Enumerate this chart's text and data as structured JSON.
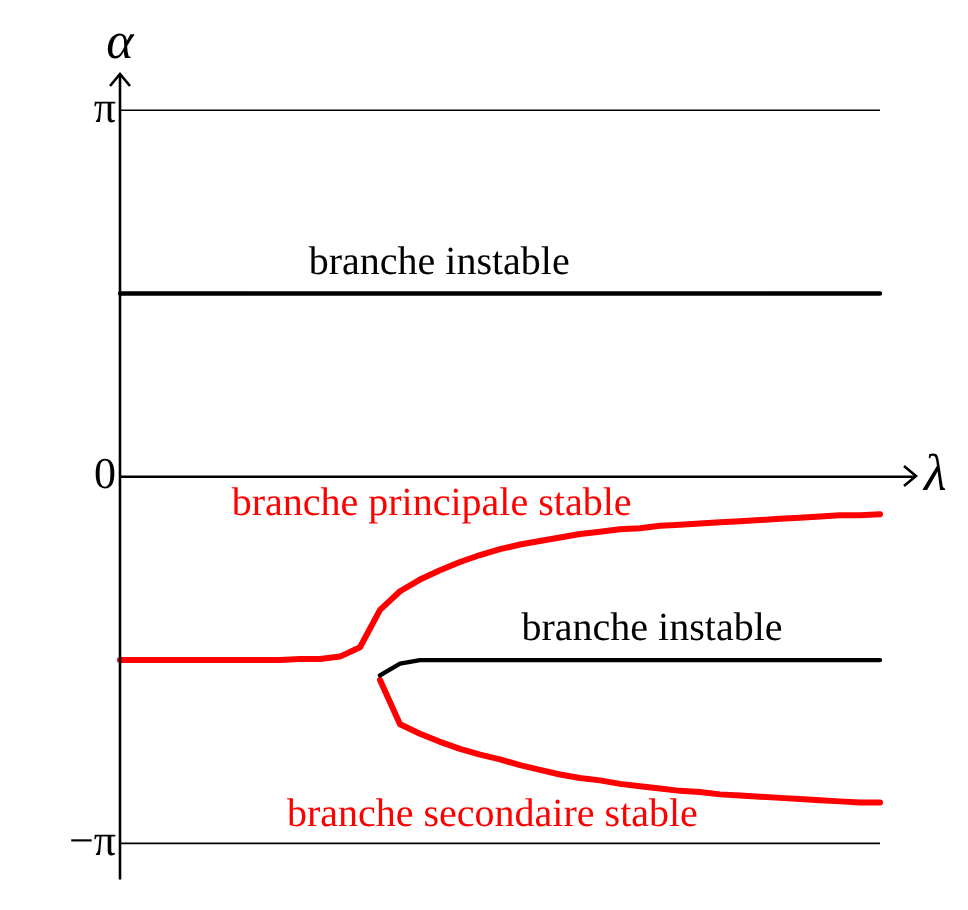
{
  "chart_data": {
    "type": "line",
    "xlabel": "λ",
    "ylabel": "α",
    "categories": [
      null,
      null,
      null,
      null,
      null,
      null,
      null,
      null,
      null,
      null,
      null,
      null,
      null,
      null,
      null,
      null,
      null,
      null,
      null,
      null,
      null,
      null,
      null,
      null,
      null,
      null,
      null,
      null,
      null,
      null,
      null,
      null,
      null,
      null,
      null,
      null,
      null,
      null,
      null
    ],
    "series": [
      {
        "name": "branche instable",
        "color": "#000000",
        "values": [
          1.57,
          1.57,
          1.57,
          1.57,
          1.57,
          1.57,
          1.57,
          1.57,
          1.57,
          1.57,
          1.57,
          1.57,
          1.57,
          1.57,
          1.57,
          1.57,
          1.57,
          1.57,
          1.57,
          1.57,
          1.57,
          1.57,
          1.57,
          1.57,
          1.57,
          1.57,
          1.57,
          1.57,
          1.57,
          1.57,
          1.57,
          1.57,
          1.57,
          1.57,
          1.57,
          1.57,
          1.57,
          1.57,
          1.57
        ]
      },
      {
        "name": "branche principale stable",
        "color": "#ff0000",
        "values": [
          -1.57,
          -1.57,
          -1.57,
          -1.57,
          -1.57,
          -1.57,
          -1.57,
          -1.57,
          -1.57,
          -1.56,
          -1.56,
          -1.54,
          -1.46,
          -1.14,
          -0.98,
          -0.88,
          -0.8,
          -0.73,
          -0.67,
          -0.62,
          -0.58,
          -0.55,
          -0.52,
          -0.49,
          -0.47,
          -0.45,
          -0.44,
          -0.42,
          -0.41,
          -0.4,
          -0.39,
          -0.38,
          -0.37,
          -0.36,
          -0.35,
          -0.34,
          -0.33,
          -0.33,
          -0.32
        ]
      },
      {
        "name": "branche instable",
        "color": "#000000",
        "values": [
          null,
          null,
          null,
          null,
          null,
          null,
          null,
          null,
          null,
          null,
          null,
          null,
          null,
          -1.7,
          -1.6,
          -1.57,
          -1.57,
          -1.57,
          -1.57,
          -1.57,
          -1.57,
          -1.57,
          -1.57,
          -1.57,
          -1.57,
          -1.57,
          -1.57,
          -1.57,
          -1.57,
          -1.57,
          -1.57,
          -1.57,
          -1.57,
          -1.57,
          -1.57,
          -1.57,
          -1.57,
          -1.57,
          -1.57
        ]
      },
      {
        "name": "branche secondaire stable",
        "color": "#ff0000",
        "values": [
          null,
          null,
          null,
          null,
          null,
          null,
          null,
          null,
          null,
          null,
          null,
          null,
          null,
          -1.74,
          -2.12,
          -2.2,
          -2.27,
          -2.33,
          -2.38,
          -2.42,
          -2.47,
          -2.51,
          -2.55,
          -2.58,
          -2.6,
          -2.63,
          -2.65,
          -2.67,
          -2.69,
          -2.7,
          -2.72,
          -2.73,
          -2.74,
          -2.75,
          -2.76,
          -2.77,
          -2.78,
          -2.79,
          -2.79
        ]
      }
    ],
    "ylim": [
      -3.45,
      3.45
    ],
    "yticks": [
      {
        "value": 3.14,
        "label": "π"
      },
      0,
      {
        "value": -3.14,
        "label": "−π"
      }
    ],
    "ref_lines": [
      {
        "axis": "y",
        "value": 3.14
      },
      {
        "axis": "y",
        "value": -3.14
      }
    ],
    "legend": false,
    "marker": "none",
    "line_style": "solid",
    "tick_labels": "y"
  }
}
